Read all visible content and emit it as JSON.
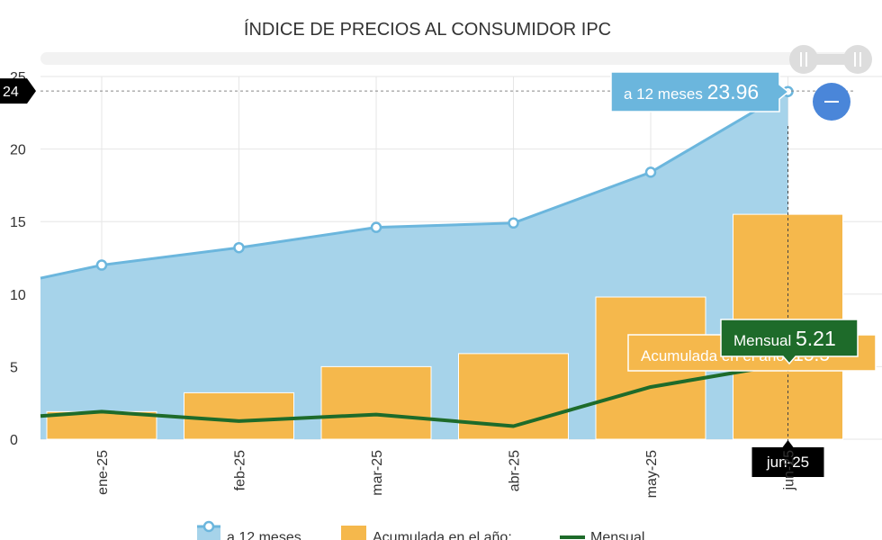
{
  "chart_data": {
    "type": "bar",
    "title": "ÍNDICE DE PRECIOS AL CONSUMIDOR IPC",
    "categories": [
      "ene-25",
      "feb-25",
      "mar-25",
      "abr-25",
      "may-25",
      "jun-25"
    ],
    "ylim": [
      0,
      25
    ],
    "yticks": [
      "0",
      "5",
      "10",
      "15",
      "20",
      "25"
    ],
    "series": [
      {
        "name": "a 12 meses",
        "type": "area",
        "color": "#6bb6dd",
        "fill": "#a6d3ea",
        "values": [
          12.0,
          13.2,
          14.6,
          14.9,
          18.4,
          23.96
        ],
        "edge_start": 11.1
      },
      {
        "name": "Acumulada en el año:",
        "type": "bar",
        "color": "#f5b84c",
        "values": [
          1.9,
          3.2,
          5.0,
          5.9,
          9.8,
          15.5
        ]
      },
      {
        "name": "Mensual",
        "type": "line",
        "color": "#1e6b2a",
        "values": [
          1.9,
          1.25,
          1.7,
          0.9,
          3.6,
          5.21
        ],
        "edge_start": 1.6
      }
    ],
    "crosshair": {
      "category": "jun-25",
      "y_label": "24"
    },
    "tooltips": {
      "area": {
        "label": "a 12 meses",
        "value": "23.96"
      },
      "bar": {
        "label": "Acumulada en el año:",
        "value": "15.5"
      },
      "line": {
        "label": "Mensual",
        "value": "5.21"
      }
    },
    "grid": true,
    "legend_position": "bottom"
  }
}
